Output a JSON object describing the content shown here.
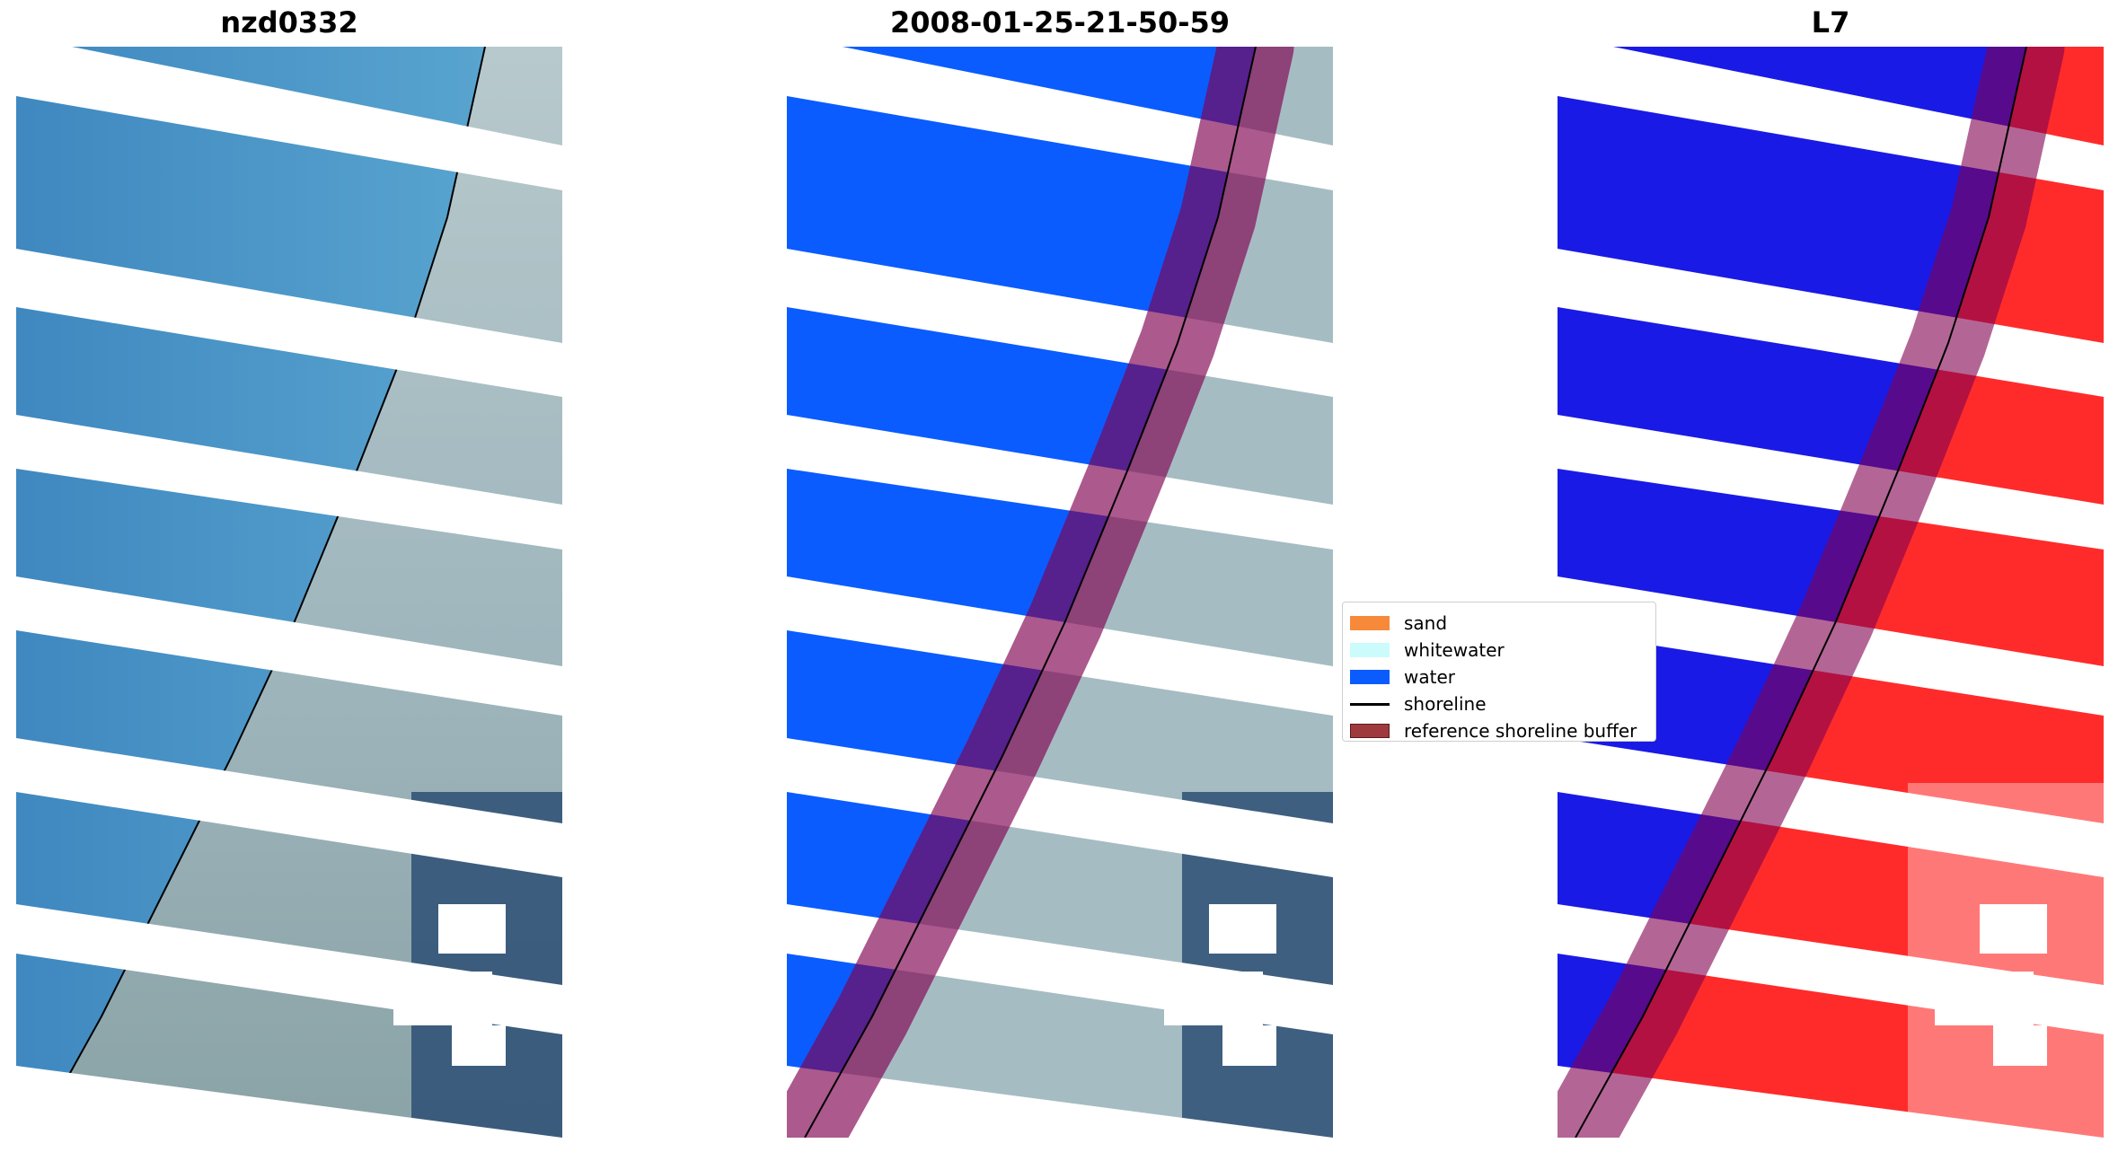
{
  "panels": [
    {
      "title": "nzd0332"
    },
    {
      "title": "2008-01-25-21-50-59"
    },
    {
      "title": "L7"
    }
  ],
  "legend": {
    "items": [
      {
        "label": "sand",
        "color": "#f68a3a",
        "type": "patch"
      },
      {
        "label": "whitewater",
        "color": "#cbfbfa",
        "type": "patch"
      },
      {
        "label": "water",
        "color": "#0a5cff",
        "type": "patch"
      },
      {
        "label": "shoreline",
        "color": "#000000",
        "type": "line"
      },
      {
        "label": "reference shoreline buffer",
        "color": "#9e3a3e",
        "type": "patch"
      }
    ]
  },
  "colors": {
    "sea": "#3a8fc6",
    "land": "#a9bfc7",
    "water_class": "#0a5cff",
    "mndwi_water": "#1a1ae6",
    "mndwi_land": "#ff2b2b",
    "buffer": "#800050"
  }
}
